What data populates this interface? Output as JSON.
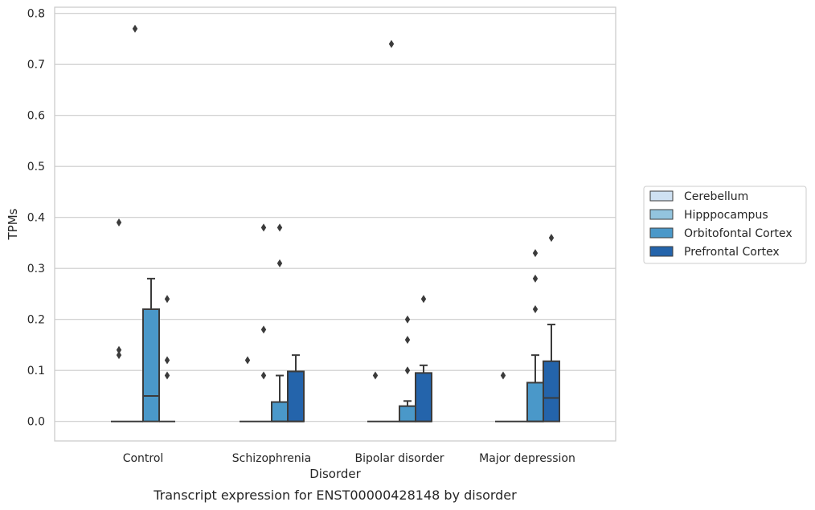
{
  "caption": "Transcript expression for ENST00000428148 by disorder",
  "colors": {
    "Cerebellum": "#cfe1f2",
    "Hipppocampus": "#93c4de",
    "Orbitofontal Cortex": "#4a98c9",
    "Prefrontal Cortex": "#2464ab"
  },
  "chart_data": {
    "type": "box",
    "xlabel": "Disorder",
    "ylabel": "TPMs",
    "ylim": [
      -0.038,
      0.812
    ],
    "yticks": [
      0.0,
      0.1,
      0.2,
      0.3,
      0.4,
      0.5,
      0.6,
      0.7,
      0.8
    ],
    "ytick_labels": [
      "0.0",
      "0.1",
      "0.2",
      "0.3",
      "0.4",
      "0.5",
      "0.6",
      "0.7",
      "0.8"
    ],
    "grid": "horizontal",
    "legend_position": "right",
    "categories": [
      "Control",
      "Schizophrenia",
      "Bipolar disorder",
      "Major depression"
    ],
    "series": [
      {
        "name": "Cerebellum",
        "boxes": [
          {
            "q1": 0,
            "median": 0,
            "q3": 0,
            "whisker_low": 0,
            "whisker_high": 0,
            "outliers": [
              0.14,
              0.13,
              0.39
            ]
          },
          {
            "q1": 0,
            "median": 0,
            "q3": 0,
            "whisker_low": 0,
            "whisker_high": 0,
            "outliers": [
              0.12
            ]
          },
          {
            "q1": 0,
            "median": 0,
            "q3": 0,
            "whisker_low": 0,
            "whisker_high": 0,
            "outliers": [
              0.09
            ]
          },
          {
            "q1": 0,
            "median": 0,
            "q3": 0,
            "whisker_low": 0,
            "whisker_high": 0,
            "outliers": [
              0.09
            ]
          }
        ]
      },
      {
        "name": "Hipppocampus",
        "boxes": [
          {
            "q1": 0,
            "median": 0,
            "q3": 0,
            "whisker_low": 0,
            "whisker_high": 0,
            "outliers": [
              0.77
            ]
          },
          {
            "q1": 0,
            "median": 0,
            "q3": 0,
            "whisker_low": 0,
            "whisker_high": 0,
            "outliers": [
              0.38,
              0.18,
              0.09
            ]
          },
          {
            "q1": 0,
            "median": 0,
            "q3": 0,
            "whisker_low": 0,
            "whisker_high": 0,
            "outliers": [
              0.74
            ]
          },
          {
            "q1": 0,
            "median": 0,
            "q3": 0,
            "whisker_low": 0,
            "whisker_high": 0,
            "outliers": []
          }
        ]
      },
      {
        "name": "Orbitofontal Cortex",
        "boxes": [
          {
            "q1": 0,
            "median": 0.05,
            "q3": 0.22,
            "whisker_low": 0,
            "whisker_high": 0.28,
            "outliers": []
          },
          {
            "q1": 0,
            "median": 0,
            "q3": 0.038,
            "whisker_low": 0,
            "whisker_high": 0.09,
            "outliers": [
              0.38,
              0.31
            ]
          },
          {
            "q1": 0,
            "median": 0,
            "q3": 0.03,
            "whisker_low": 0,
            "whisker_high": 0.04,
            "outliers": [
              0.2,
              0.16,
              0.1
            ]
          },
          {
            "q1": 0,
            "median": 0,
            "q3": 0.076,
            "whisker_low": 0,
            "whisker_high": 0.13,
            "outliers": [
              0.33,
              0.28,
              0.22
            ]
          }
        ]
      },
      {
        "name": "Prefrontal Cortex",
        "boxes": [
          {
            "q1": 0,
            "median": 0,
            "q3": 0,
            "whisker_low": 0,
            "whisker_high": 0,
            "outliers": [
              0.24,
              0.12,
              0.09
            ]
          },
          {
            "q1": 0,
            "median": 0,
            "q3": 0.098,
            "whisker_low": 0,
            "whisker_high": 0.13,
            "outliers": []
          },
          {
            "q1": 0,
            "median": 0,
            "q3": 0.095,
            "whisker_low": 0,
            "whisker_high": 0.11,
            "outliers": [
              0.24
            ]
          },
          {
            "q1": 0,
            "median": 0.046,
            "q3": 0.118,
            "whisker_low": 0,
            "whisker_high": 0.19,
            "outliers": [
              0.36
            ]
          }
        ]
      }
    ]
  }
}
